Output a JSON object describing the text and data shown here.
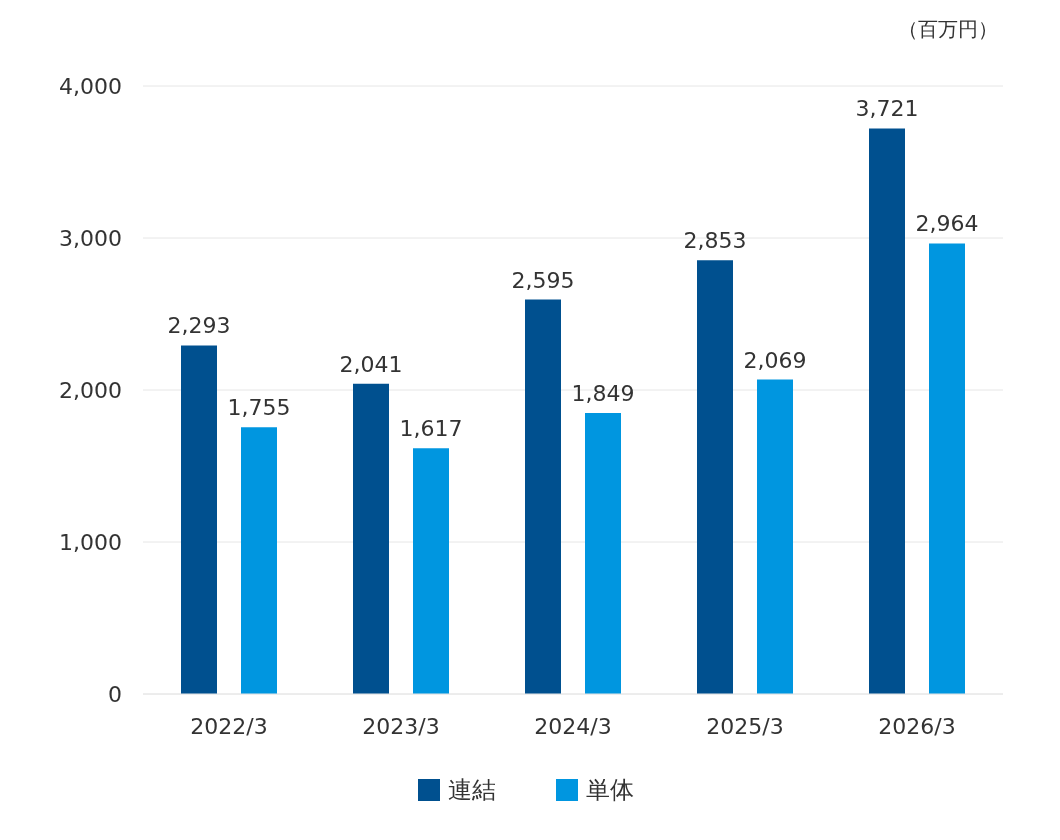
{
  "chart_data": {
    "type": "bar",
    "ylabel": "（百万円）",
    "categories": [
      "2022/3",
      "2023/3",
      "2024/3",
      "2025/3",
      "2026/3"
    ],
    "series": [
      {
        "name": "連結",
        "color": "#00508f",
        "values": [
          2293,
          2041,
          2595,
          2853,
          3721
        ],
        "value_labels": [
          "2,293",
          "2,041",
          "2,595",
          "2,853",
          "3,721"
        ]
      },
      {
        "name": "単体",
        "color": "#0096e0",
        "values": [
          1755,
          1617,
          1849,
          2069,
          2964
        ],
        "value_labels": [
          "1,755",
          "1,617",
          "1,849",
          "2,069",
          "2,964"
        ]
      }
    ],
    "ylim": [
      0,
      4000
    ],
    "yticks": [
      {
        "value": 0,
        "label": "0"
      },
      {
        "value": 1000,
        "label": "1,000"
      },
      {
        "value": 2000,
        "label": "2,000"
      },
      {
        "value": 3000,
        "label": "3,000"
      },
      {
        "value": 4000,
        "label": "4,000"
      }
    ],
    "grid": "y",
    "legend": "bottom"
  }
}
